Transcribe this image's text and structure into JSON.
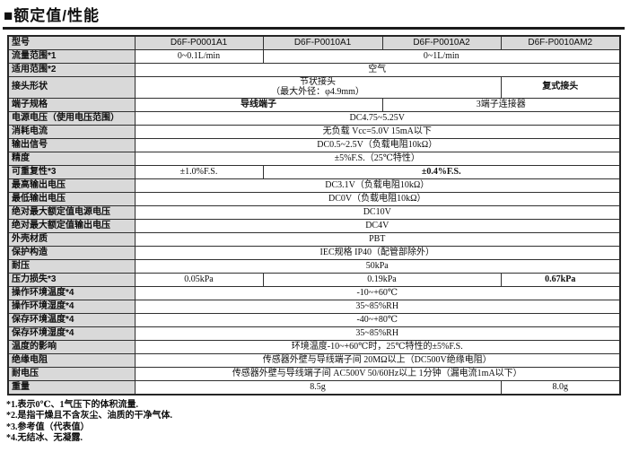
{
  "title": "■额定值/性能",
  "table": {
    "header": {
      "label": "型号",
      "models": [
        "D6F-P0001A1",
        "D6F-P0010A1",
        "D6F-P0010A2",
        "D6F-P0010AM2"
      ]
    },
    "rows": [
      {
        "label": "流量范围*1",
        "cells": [
          {
            "text": "0~0.1L/min",
            "span": 1
          },
          {
            "text": "0~1L/min",
            "span": 3
          }
        ]
      },
      {
        "label": "适用范围*2",
        "cells": [
          {
            "text": "空气",
            "span": 4
          }
        ]
      },
      {
        "label": "接头形状",
        "cells": [
          {
            "text": "节状接头\n（最大外径：φ4.9mm）",
            "span": 3,
            "multiline": true
          },
          {
            "text": "复式接头",
            "span": 1,
            "bold": true
          }
        ]
      },
      {
        "label": "端子规格",
        "cells": [
          {
            "text": "导线端子",
            "span": 2,
            "bold": true
          },
          {
            "text": "3端子连接器",
            "span": 2
          }
        ]
      },
      {
        "label": "电源电压（使用电压范围）",
        "cells": [
          {
            "text": "DC4.75~5.25V",
            "span": 4
          }
        ]
      },
      {
        "label": "消耗电流",
        "cells": [
          {
            "text": "无负载 Vcc=5.0V 15mA以下",
            "span": 4
          }
        ]
      },
      {
        "label": "输出信号",
        "cells": [
          {
            "text": "DC0.5~2.5V（负载电阻10kΩ）",
            "span": 4
          }
        ]
      },
      {
        "label": "精度",
        "cells": [
          {
            "text": "±5%F.S.（25℃特性）",
            "span": 4
          }
        ]
      },
      {
        "label": "可重复性*3",
        "cells": [
          {
            "text": "±1.0%F.S.",
            "span": 1
          },
          {
            "text": "±0.4%F.S.",
            "span": 3,
            "bold": true
          }
        ]
      },
      {
        "label": "最高输出电压",
        "cells": [
          {
            "text": "DC3.1V（负载电阻10kΩ）",
            "span": 4
          }
        ]
      },
      {
        "label": "最低输出电压",
        "cells": [
          {
            "text": "DC0V（负载电阻10kΩ）",
            "span": 4
          }
        ]
      },
      {
        "label": "绝对最大额定值电源电压",
        "cells": [
          {
            "text": "DC10V",
            "span": 4
          }
        ]
      },
      {
        "label": "绝对最大额定值输出电压",
        "cells": [
          {
            "text": "DC4V",
            "span": 4
          }
        ]
      },
      {
        "label": "外壳材质",
        "cells": [
          {
            "text": "PBT",
            "span": 4
          }
        ]
      },
      {
        "label": "保护构造",
        "cells": [
          {
            "text": "IEC规格 IP40（配管部除外）",
            "span": 4
          }
        ]
      },
      {
        "label": "耐压",
        "cells": [
          {
            "text": "50kPa",
            "span": 4
          }
        ]
      },
      {
        "label": "压力损失*3",
        "cells": [
          {
            "text": "0.05kPa",
            "span": 1
          },
          {
            "text": "0.19kPa",
            "span": 2
          },
          {
            "text": "0.67kPa",
            "span": 1,
            "bold": true
          }
        ]
      },
      {
        "label": "操作环境温度*4",
        "cells": [
          {
            "text": "-10~+60℃",
            "span": 4
          }
        ]
      },
      {
        "label": "操作环境湿度*4",
        "cells": [
          {
            "text": "35~85%RH",
            "span": 4
          }
        ]
      },
      {
        "label": "保存环境温度*4",
        "cells": [
          {
            "text": "-40~+80℃",
            "span": 4
          }
        ]
      },
      {
        "label": "保存环境湿度*4",
        "cells": [
          {
            "text": "35~85%RH",
            "span": 4
          }
        ]
      },
      {
        "label": "温度的影响",
        "cells": [
          {
            "text": "环境温度-10~+60℃时，25℃特性的±5%F.S.",
            "span": 4
          }
        ]
      },
      {
        "label": "绝缘电阻",
        "cells": [
          {
            "text": "传感器外壁与导线端子间 20MΩ以上（DC500V绝缘电阻）",
            "span": 4
          }
        ]
      },
      {
        "label": "耐电压",
        "cells": [
          {
            "text": "传感器外壁与导线端子间 AC500V 50/60Hz以上 1分钟（漏电流1mA以下）",
            "span": 4
          }
        ]
      },
      {
        "label": "重量",
        "cells": [
          {
            "text": "8.5g",
            "span": 3
          },
          {
            "text": "8.0g",
            "span": 1
          }
        ]
      }
    ]
  },
  "footnotes": [
    "*1.表示0℃、1气压下的体积流量.",
    "*2.是指干燥且不含灰尘、油质的干净气体.",
    "*3.参考值（代表值）",
    "*4.无结冰、无凝露."
  ],
  "colors": {
    "header_bg": "#d9d9d9",
    "border": "#303030",
    "rule": "#1b1b1b"
  }
}
